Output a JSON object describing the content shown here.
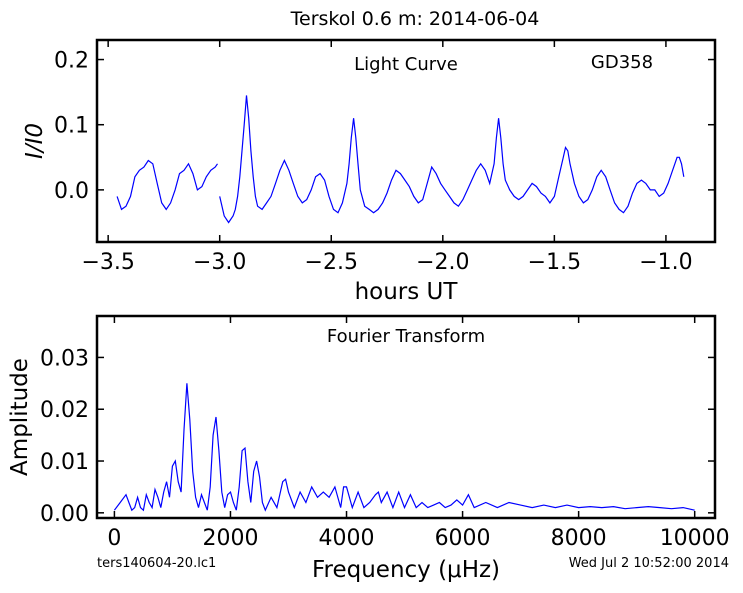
{
  "figure_title": "Terskol 0.6 m:  2014-06-04",
  "footer": {
    "filename": "ters140604-20.lc1",
    "timestamp": "Wed Jul  2 10:52:00 2014"
  },
  "colors": {
    "line": "#0000ff",
    "axes": "#000000",
    "background": "#ffffff"
  },
  "chart_data": [
    {
      "type": "line",
      "title": "Light Curve",
      "annotation": "GD358",
      "xlabel": "hours UT",
      "ylabel": "I/I0",
      "xlim": [
        -3.55,
        -0.78
      ],
      "ylim": [
        -0.08,
        0.23
      ],
      "xticks": [
        -3.5,
        -3.0,
        -2.5,
        -2.0,
        -1.5,
        -1.0
      ],
      "xtick_labels": [
        "−3.5",
        "−3.0",
        "−2.5",
        "−2.0",
        "−1.5",
        "−1.0"
      ],
      "yticks": [
        0.0,
        0.1,
        0.2
      ],
      "ytick_labels": [
        "0.0",
        "0.1",
        "0.2"
      ],
      "grid": false,
      "segments": [
        {
          "x": [
            -3.46,
            -3.44,
            -3.42,
            -3.4,
            -3.38,
            -3.36,
            -3.34,
            -3.32,
            -3.3,
            -3.28,
            -3.26,
            -3.24,
            -3.22,
            -3.2,
            -3.18,
            -3.16,
            -3.14,
            -3.12,
            -3.1,
            -3.08,
            -3.06,
            -3.04,
            -3.02,
            -3.01
          ],
          "y": [
            -0.01,
            -0.03,
            -0.025,
            -0.01,
            0.02,
            0.03,
            0.035,
            0.045,
            0.04,
            0.01,
            -0.02,
            -0.03,
            -0.02,
            0.0,
            0.025,
            0.03,
            0.04,
            0.025,
            0.0,
            0.005,
            0.02,
            0.03,
            0.035,
            0.04
          ]
        },
        {
          "x": [
            -3.0,
            -2.98,
            -2.96,
            -2.94,
            -2.93,
            -2.92,
            -2.91,
            -2.9,
            -2.89,
            -2.88,
            -2.87,
            -2.86,
            -2.85,
            -2.84,
            -2.83,
            -2.81,
            -2.79,
            -2.77,
            -2.75,
            -2.73,
            -2.71,
            -2.69,
            -2.67,
            -2.65,
            -2.63,
            -2.61,
            -2.59,
            -2.57,
            -2.55,
            -2.53,
            -2.51,
            -2.49,
            -2.47,
            -2.45,
            -2.43,
            -2.42,
            -2.41,
            -2.4,
            -2.39,
            -2.38,
            -2.37,
            -2.35,
            -2.33,
            -2.31,
            -2.29,
            -2.27,
            -2.25,
            -2.23,
            -2.21,
            -2.19,
            -2.17,
            -2.15,
            -2.13,
            -2.11,
            -2.09,
            -2.07,
            -2.05,
            -2.03,
            -2.01,
            -1.99,
            -1.97,
            -1.95,
            -1.93,
            -1.91,
            -1.89,
            -1.87,
            -1.85,
            -1.83,
            -1.81,
            -1.79,
            -1.77,
            -1.76,
            -1.75,
            -1.74,
            -1.73,
            -1.72,
            -1.7,
            -1.68,
            -1.66,
            -1.64,
            -1.62,
            -1.6,
            -1.58,
            -1.56,
            -1.54,
            -1.52,
            -1.5,
            -1.48,
            -1.46,
            -1.45,
            -1.44,
            -1.43,
            -1.41,
            -1.39,
            -1.37,
            -1.35,
            -1.33,
            -1.31,
            -1.29,
            -1.27,
            -1.25,
            -1.23,
            -1.21,
            -1.19,
            -1.17,
            -1.15,
            -1.13,
            -1.11,
            -1.09,
            -1.07,
            -1.05,
            -1.03,
            -1.01,
            -0.99,
            -0.97,
            -0.95,
            -0.94,
            -0.93,
            -0.92
          ],
          "y": [
            -0.01,
            -0.04,
            -0.05,
            -0.04,
            -0.03,
            -0.01,
            0.02,
            0.06,
            0.1,
            0.145,
            0.11,
            0.06,
            0.02,
            -0.01,
            -0.025,
            -0.03,
            -0.02,
            -0.01,
            0.01,
            0.03,
            0.045,
            0.03,
            0.01,
            -0.01,
            -0.02,
            -0.015,
            0.0,
            0.02,
            0.025,
            0.015,
            -0.01,
            -0.03,
            -0.035,
            -0.02,
            0.01,
            0.04,
            0.08,
            0.11,
            0.08,
            0.04,
            0.0,
            -0.025,
            -0.03,
            -0.035,
            -0.03,
            -0.02,
            -0.005,
            0.015,
            0.03,
            0.025,
            0.015,
            0.005,
            -0.01,
            -0.02,
            -0.015,
            0.01,
            0.035,
            0.025,
            0.01,
            0.0,
            -0.01,
            -0.02,
            -0.025,
            -0.015,
            0.0,
            0.015,
            0.03,
            0.04,
            0.03,
            0.01,
            0.04,
            0.08,
            0.11,
            0.08,
            0.04,
            0.015,
            0.0,
            -0.01,
            -0.015,
            -0.01,
            0.0,
            0.01,
            0.005,
            -0.005,
            -0.01,
            -0.02,
            -0.01,
            0.02,
            0.05,
            0.065,
            0.06,
            0.04,
            0.01,
            -0.01,
            -0.02,
            -0.015,
            0.0,
            0.02,
            0.03,
            0.02,
            0.0,
            -0.02,
            -0.03,
            -0.035,
            -0.025,
            -0.005,
            0.01,
            0.015,
            0.01,
            0.0,
            0.0,
            -0.01,
            -0.005,
            0.01,
            0.03,
            0.05,
            0.05,
            0.04,
            0.02
          ]
        }
      ]
    },
    {
      "type": "line",
      "title": "Fourier Transform",
      "xlabel": "Frequency (μHz)",
      "ylabel": "Amplitude",
      "xlim": [
        -300,
        10350
      ],
      "ylim": [
        -0.001,
        0.038
      ],
      "xticks": [
        0,
        2000,
        4000,
        6000,
        8000,
        10000
      ],
      "xtick_labels": [
        "0",
        "2000",
        "4000",
        "6000",
        "8000",
        "10000"
      ],
      "yticks": [
        0.0,
        0.01,
        0.02,
        0.03
      ],
      "ytick_labels": [
        "0.00",
        "0.01",
        "0.02",
        "0.03"
      ],
      "grid": false,
      "x": [
        0,
        100,
        200,
        250,
        300,
        350,
        400,
        450,
        500,
        550,
        600,
        650,
        700,
        750,
        800,
        850,
        900,
        950,
        1000,
        1050,
        1100,
        1150,
        1200,
        1250,
        1300,
        1350,
        1400,
        1450,
        1500,
        1550,
        1600,
        1650,
        1700,
        1750,
        1800,
        1850,
        1900,
        1950,
        2000,
        2050,
        2100,
        2150,
        2200,
        2250,
        2300,
        2350,
        2400,
        2450,
        2500,
        2550,
        2600,
        2700,
        2800,
        2900,
        2950,
        3000,
        3100,
        3200,
        3300,
        3400,
        3500,
        3600,
        3700,
        3800,
        3900,
        3950,
        4000,
        4100,
        4200,
        4300,
        4400,
        4500,
        4550,
        4600,
        4700,
        4800,
        4900,
        5000,
        5100,
        5200,
        5300,
        5400,
        5500,
        5600,
        5700,
        5800,
        5900,
        6000,
        6100,
        6200,
        6400,
        6600,
        6800,
        7000,
        7200,
        7400,
        7600,
        7800,
        8000,
        8200,
        8400,
        8600,
        8800,
        9000,
        9200,
        9400,
        9600,
        9800,
        10000
      ],
      "y": [
        0.0005,
        0.002,
        0.0035,
        0.002,
        0.0005,
        0.001,
        0.003,
        0.001,
        0.0005,
        0.0035,
        0.002,
        0.001,
        0.0045,
        0.003,
        0.001,
        0.004,
        0.006,
        0.003,
        0.009,
        0.01,
        0.006,
        0.004,
        0.016,
        0.025,
        0.018,
        0.008,
        0.003,
        0.001,
        0.0035,
        0.002,
        0.0005,
        0.005,
        0.015,
        0.0185,
        0.012,
        0.004,
        0.001,
        0.0035,
        0.004,
        0.002,
        0.0005,
        0.005,
        0.012,
        0.0125,
        0.006,
        0.002,
        0.008,
        0.01,
        0.007,
        0.002,
        0.0005,
        0.003,
        0.001,
        0.006,
        0.0065,
        0.004,
        0.001,
        0.004,
        0.002,
        0.005,
        0.003,
        0.004,
        0.003,
        0.005,
        0.001,
        0.005,
        0.005,
        0.001,
        0.004,
        0.001,
        0.002,
        0.0035,
        0.004,
        0.002,
        0.004,
        0.001,
        0.004,
        0.001,
        0.0035,
        0.001,
        0.002,
        0.001,
        0.0015,
        0.002,
        0.001,
        0.0015,
        0.0025,
        0.0015,
        0.0035,
        0.001,
        0.002,
        0.001,
        0.002,
        0.0015,
        0.001,
        0.0015,
        0.001,
        0.0015,
        0.001,
        0.0012,
        0.001,
        0.0012,
        0.0008,
        0.001,
        0.0012,
        0.001,
        0.0008,
        0.001,
        0.0005
      ]
    }
  ]
}
